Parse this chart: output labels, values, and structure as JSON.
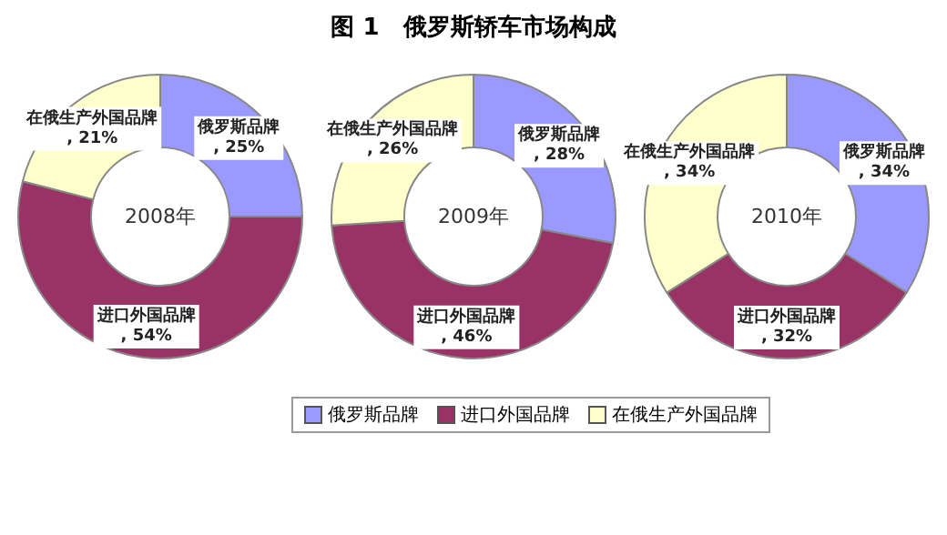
{
  "chart_data": [
    {
      "type": "donut",
      "categories": [
        "俄罗斯品牌",
        "进口外国品牌",
        "在俄生产外国品牌"
      ],
      "values": [
        25,
        54,
        21
      ],
      "value_labels": [
        ", 25%",
        ", 54%",
        ", 21%"
      ],
      "colors": [
        "#9999ff",
        "#993366",
        "#ffffcc"
      ],
      "annotations": [
        "2008年"
      ]
    },
    {
      "type": "donut",
      "title": "图 1　俄罗斯轿车市场构成",
      "categories": [
        "俄罗斯品牌",
        "进口外国品牌",
        "在俄生产外国品牌"
      ],
      "values": [
        28,
        46,
        26
      ],
      "value_labels": [
        ", 28%",
        ", 46%",
        ", 26%"
      ],
      "colors": [
        "#9999ff",
        "#993366",
        "#ffffcc"
      ],
      "annotations": [
        "2009年"
      ],
      "legend": "bottom"
    },
    {
      "type": "donut",
      "categories": [
        "俄罗斯品牌",
        "进口外国品牌",
        "在俄生产外国品牌"
      ],
      "values": [
        34,
        32,
        34
      ],
      "value_labels": [
        ", 34%",
        ", 32%",
        ", 34%"
      ],
      "colors": [
        "#9999ff",
        "#993366",
        "#ffffcc"
      ],
      "annotations": [
        "2010年"
      ]
    }
  ]
}
